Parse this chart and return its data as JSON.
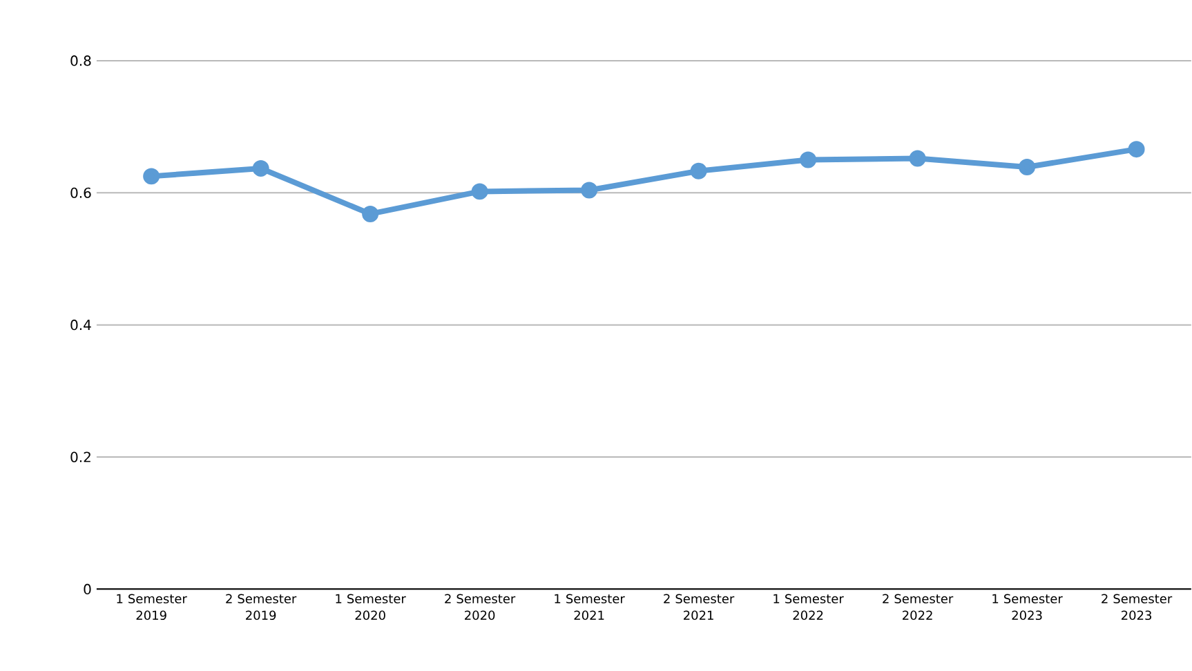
{
  "chart_data": {
    "type": "line",
    "categories": [
      "1 Semester 2019",
      "2 Semester 2019",
      "1 Semester 2020",
      "2 Semester 2020",
      "1 Semester 2021",
      "2 Semester 2021",
      "1 Semester 2022",
      "2 Semester 2022",
      "1 Semester 2023",
      "2 Semester 2023"
    ],
    "series": [
      {
        "color": "#5b9bd5",
        "values": [
          0.625,
          0.637,
          0.568,
          0.602,
          0.604,
          0.633,
          0.65,
          0.652,
          0.639,
          0.666
        ]
      }
    ],
    "ylim": [
      0,
      0.8
    ],
    "yticks": [
      0,
      0.2,
      0.4,
      0.6,
      0.8
    ],
    "grid": "y",
    "marker": "circle",
    "line_style": "solid"
  }
}
